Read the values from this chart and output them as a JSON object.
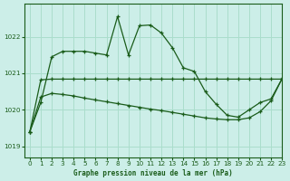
{
  "title": "Graphe pression niveau de la mer (hPa)",
  "bg_color": "#cceee8",
  "grid_color": "#aaddcc",
  "line_color": "#1a5c1a",
  "xlim": [
    -0.5,
    23
  ],
  "ylim": [
    1018.7,
    1022.9
  ],
  "yticks": [
    1019,
    1020,
    1021,
    1022
  ],
  "xticks": [
    0,
    1,
    2,
    3,
    4,
    5,
    6,
    7,
    8,
    9,
    10,
    11,
    12,
    13,
    14,
    15,
    16,
    17,
    18,
    19,
    20,
    21,
    22,
    23
  ],
  "series1_x": [
    0,
    1,
    2,
    3,
    4,
    5,
    6,
    7,
    8,
    9,
    10,
    11,
    12,
    13,
    14,
    15,
    16,
    17,
    18,
    19,
    20,
    21,
    22,
    23
  ],
  "series1_y": [
    1019.4,
    1020.2,
    1021.45,
    1021.6,
    1021.6,
    1021.6,
    1021.55,
    1021.5,
    1022.55,
    1021.5,
    1022.3,
    1022.32,
    1022.1,
    1021.7,
    1021.15,
    1021.05,
    1020.5,
    1020.15,
    1019.85,
    1019.8,
    1020.0,
    1020.2,
    1020.3,
    1020.85
  ],
  "series2_x": [
    0,
    1,
    2,
    3,
    4,
    5,
    6,
    7,
    8,
    9,
    10,
    11,
    12,
    13,
    14,
    15,
    16,
    17,
    18,
    19,
    20,
    21,
    22,
    23
  ],
  "series2_y": [
    1019.4,
    1020.35,
    1020.45,
    1020.42,
    1020.38,
    1020.32,
    1020.27,
    1020.22,
    1020.17,
    1020.12,
    1020.07,
    1020.02,
    1019.98,
    1019.93,
    1019.88,
    1019.83,
    1019.78,
    1019.75,
    1019.73,
    1019.73,
    1019.78,
    1019.95,
    1020.25,
    1020.85
  ],
  "series3_x": [
    0,
    1,
    2,
    3,
    4,
    5,
    6,
    7,
    8,
    9,
    10,
    11,
    12,
    13,
    14,
    15,
    16,
    17,
    18,
    19,
    20,
    21,
    22,
    23
  ],
  "series3_y": [
    1019.4,
    1020.82,
    1020.84,
    1020.84,
    1020.84,
    1020.84,
    1020.84,
    1020.84,
    1020.84,
    1020.84,
    1020.84,
    1020.84,
    1020.84,
    1020.84,
    1020.84,
    1020.84,
    1020.84,
    1020.84,
    1020.84,
    1020.84,
    1020.84,
    1020.84,
    1020.84,
    1020.84
  ]
}
